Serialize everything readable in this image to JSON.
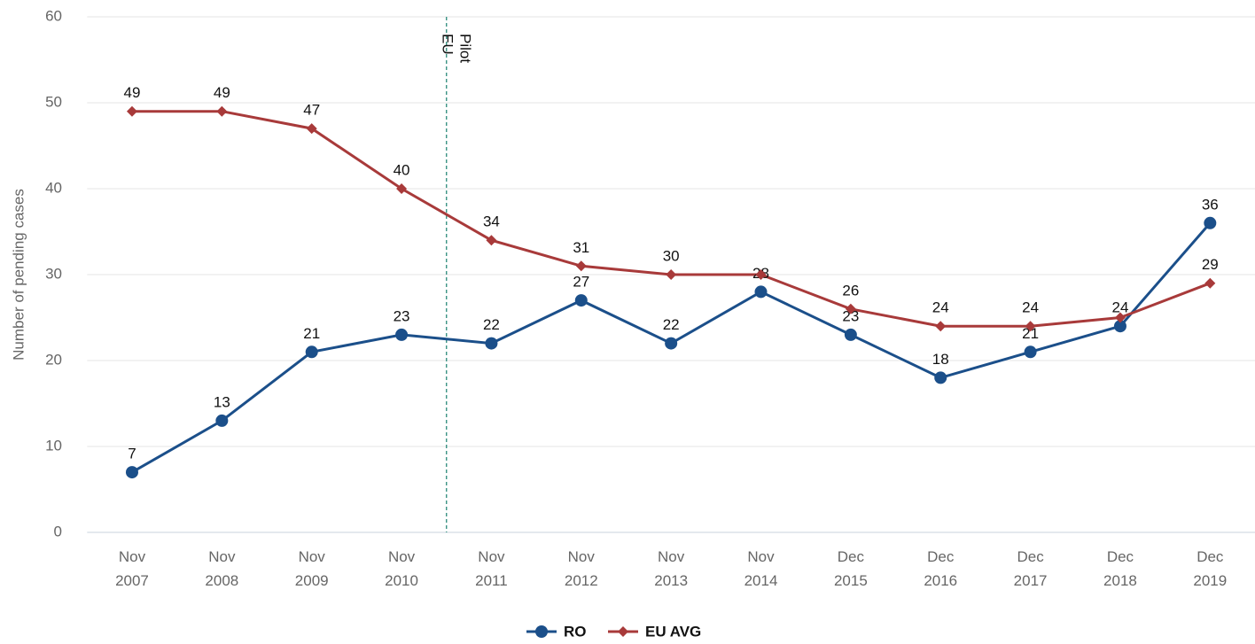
{
  "chart_data": {
    "type": "line",
    "y_label": "Number of pending cases",
    "categories": [
      "Nov 2007",
      "Nov 2008",
      "Nov 2009",
      "Nov 2010",
      "Nov 2011",
      "Nov 2012",
      "Nov 2013",
      "Nov 2014",
      "Dec 2015",
      "Dec 2016",
      "Dec 2017",
      "Dec 2018",
      "Dec 2019"
    ],
    "series": [
      {
        "name": "RO",
        "color": "#1b4f8a",
        "marker": "circle",
        "values": [
          7,
          13,
          21,
          23,
          22,
          27,
          22,
          28,
          23,
          18,
          21,
          24,
          36
        ]
      },
      {
        "name": "EU AVG",
        "color": "#a83a3a",
        "marker": "diamond",
        "values": [
          49,
          49,
          47,
          40,
          34,
          31,
          30,
          30,
          26,
          24,
          24,
          25,
          29
        ],
        "value_labels": [
          "49",
          "49",
          "47",
          "40",
          "34",
          "31",
          "30",
          null,
          "26",
          "24",
          "24",
          null,
          "29"
        ]
      }
    ],
    "ylim": [
      0,
      60
    ],
    "yticks": [
      0,
      10,
      20,
      30,
      40,
      50,
      60
    ],
    "grid": true,
    "annotation": {
      "label": "EU Pilot",
      "after": "Nov 2010"
    },
    "legend": "bottom"
  }
}
